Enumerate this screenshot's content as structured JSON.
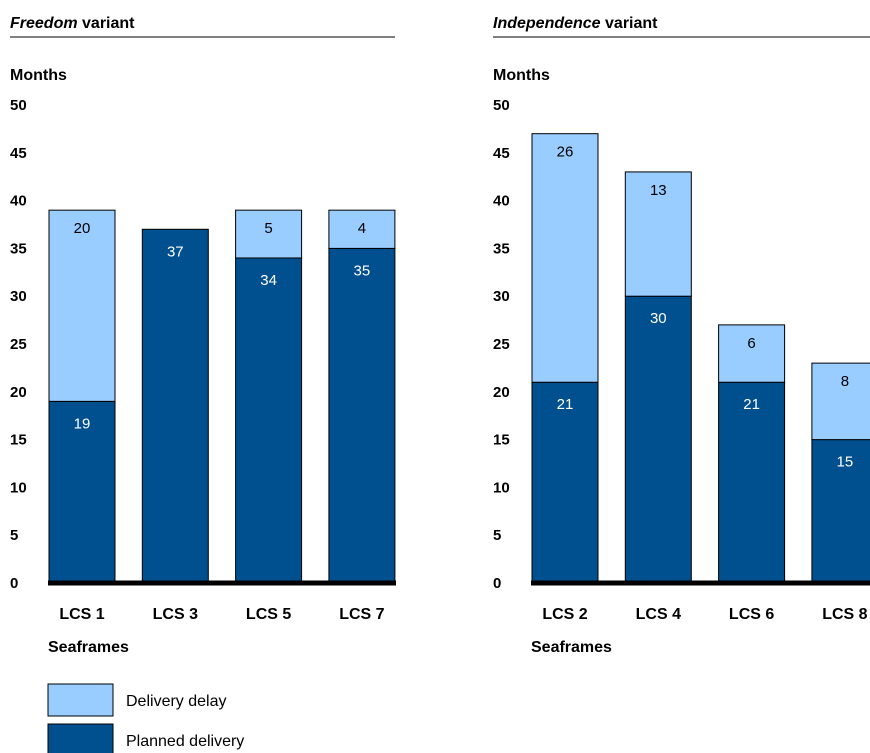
{
  "colors": {
    "delay": "#99ccff",
    "planned": "#004f8f"
  },
  "legend": {
    "delay_label": "Delivery delay",
    "planned_label": "Planned delivery"
  },
  "chart_data": [
    {
      "type": "bar",
      "stacked": true,
      "title_italic": "Freedom",
      "title_rest": " variant",
      "ylabel": "Months",
      "xlabel": "Seaframes",
      "ylim": [
        0,
        50
      ],
      "yticks": [
        0,
        5,
        10,
        15,
        20,
        25,
        30,
        35,
        40,
        45,
        50
      ],
      "categories": [
        "LCS 1",
        "LCS 3",
        "LCS 5",
        "LCS 7"
      ],
      "series": [
        {
          "name": "Planned delivery",
          "values": [
            19,
            37,
            34,
            35
          ]
        },
        {
          "name": "Delivery delay",
          "values": [
            20,
            0,
            5,
            4
          ]
        }
      ]
    },
    {
      "type": "bar",
      "stacked": true,
      "title_italic": "Independence",
      "title_rest": " variant",
      "ylabel": "Months",
      "xlabel": "Seaframes",
      "ylim": [
        0,
        50
      ],
      "yticks": [
        0,
        5,
        10,
        15,
        20,
        25,
        30,
        35,
        40,
        45,
        50
      ],
      "categories": [
        "LCS 2",
        "LCS 4",
        "LCS 6",
        "LCS 8"
      ],
      "series": [
        {
          "name": "Planned delivery",
          "values": [
            21,
            30,
            21,
            15
          ]
        },
        {
          "name": "Delivery delay",
          "values": [
            26,
            13,
            6,
            8
          ]
        }
      ]
    }
  ]
}
